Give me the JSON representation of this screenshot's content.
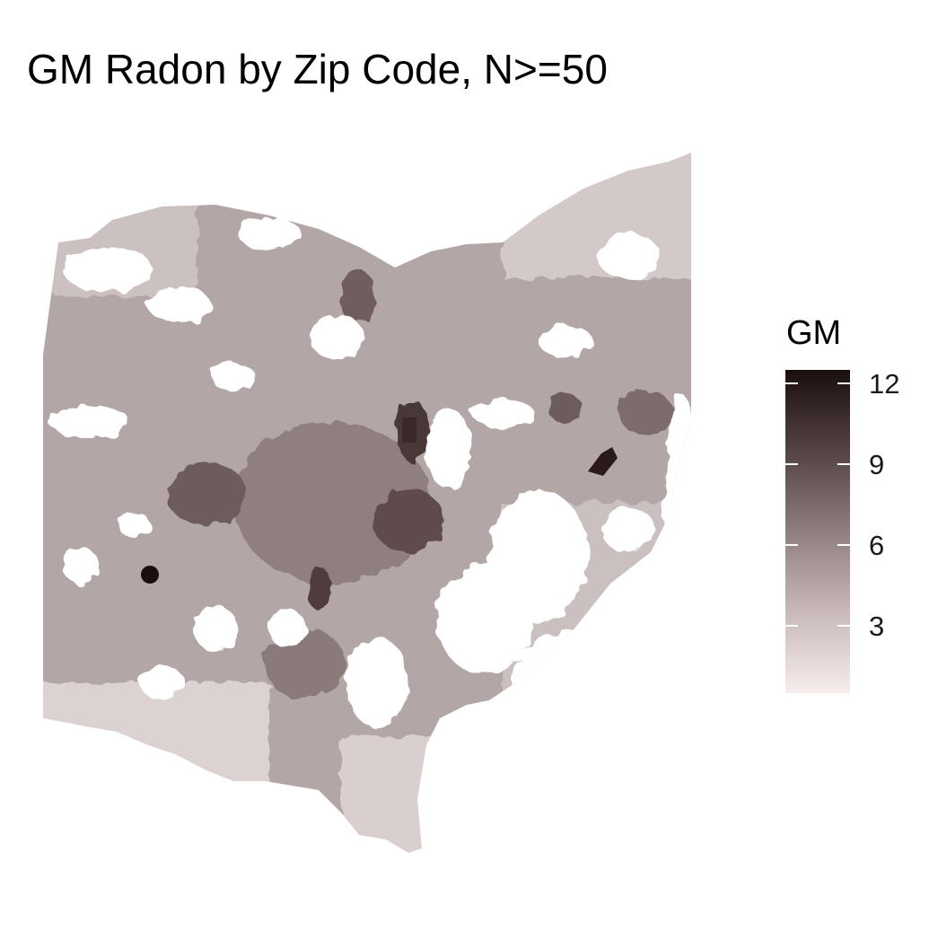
{
  "title": "GM Radon by Zip Code, N>=50",
  "legend": {
    "title": "GM",
    "ticks": [
      "3",
      "6",
      "9",
      "12"
    ],
    "color_low": "#f7eced",
    "color_high": "#1b0e0e",
    "range": [
      0.5,
      12.5
    ]
  },
  "map": {
    "region": "Ohio",
    "unit": "zip code",
    "fill_color_base": "#b3a5a5",
    "missing_color": "#ffffff"
  }
}
